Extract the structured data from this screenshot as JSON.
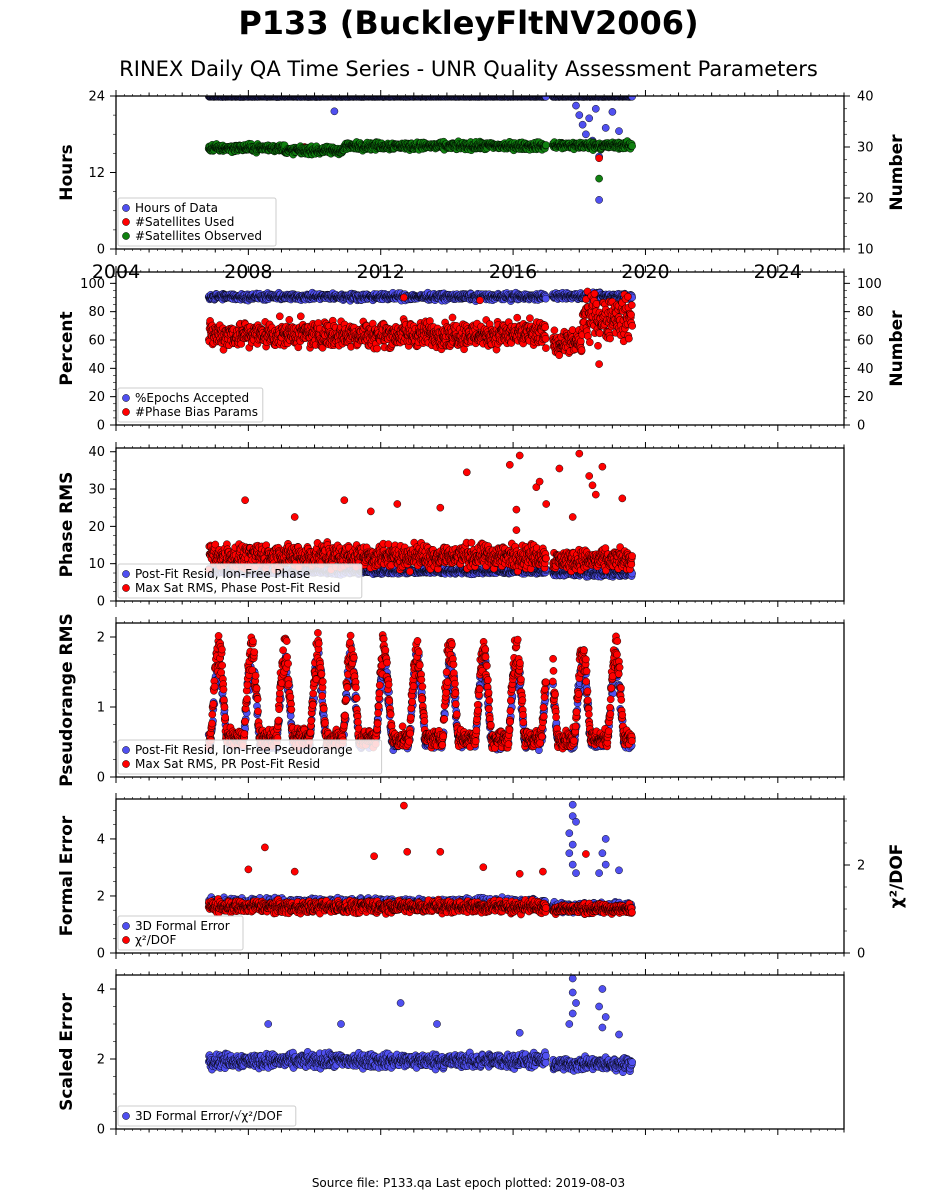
{
  "figure": {
    "title": "P133 (BuckleyFltNV2006)",
    "subtitle": "RINEX Daily QA Time Series - UNR Quality Assessment Parameters",
    "footer": "Source file: P133.qa Last epoch plotted: 2019-08-03",
    "colors": {
      "blue": "#5050f0",
      "red": "#ff0000",
      "green": "#108010",
      "edge": "#000000"
    }
  },
  "chart_data": [
    {
      "type": "scatter",
      "xlim": [
        2004,
        2026
      ],
      "xticks": [
        2004,
        2008,
        2012,
        2016,
        2020,
        2024
      ],
      "ylabel": "Hours",
      "ylim": [
        0,
        24
      ],
      "yticks": [
        "0",
        "12",
        "24"
      ],
      "ylabel_right": "Number",
      "ylim_right": [
        10,
        40
      ],
      "yticks_right": [
        "10",
        "20",
        "30",
        "40"
      ],
      "legend": "lower-left",
      "series": [
        {
          "name": "Hours of Data",
          "color": "blue",
          "axis": "left",
          "segments": [
            [
              2006.8,
              2017.0,
              23.9,
              0.05
            ],
            [
              2017.2,
              2019.6,
              23.9,
              0.05
            ]
          ],
          "scatter": [
            [
              2017.9,
              22.5
            ],
            [
              2018.0,
              21.0
            ],
            [
              2018.1,
              19.5
            ],
            [
              2018.2,
              18.0
            ],
            [
              2018.3,
              20.5
            ],
            [
              2018.4,
              17.0
            ],
            [
              2018.5,
              22.0
            ],
            [
              2018.8,
              19.0
            ],
            [
              2019.0,
              21.5
            ],
            [
              2019.2,
              18.5
            ],
            [
              2018.6,
              14.5
            ]
          ],
          "outliers": [
            [
              2010.6,
              21.6
            ],
            [
              2018.6,
              7.7
            ]
          ]
        },
        {
          "name": "#Satellites Used",
          "color": "red",
          "axis": "right",
          "outliers": [
            [
              2009.7,
              30.0
            ],
            [
              2018.6,
              27.8
            ]
          ]
        },
        {
          "name": "#Satellites Observed",
          "color": "green",
          "axis": "right",
          "segments": [
            [
              2006.8,
              2009.1,
              29.8,
              0.8
            ],
            [
              2009.1,
              2010.9,
              29.3,
              0.8
            ],
            [
              2010.9,
              2017.0,
              30.2,
              0.8
            ],
            [
              2017.2,
              2019.6,
              30.3,
              0.8
            ]
          ],
          "outliers": [
            [
              2018.6,
              23.8
            ]
          ]
        }
      ]
    },
    {
      "type": "scatter",
      "xlim": [
        2004,
        2026
      ],
      "ylabel": "Percent",
      "ylim": [
        0,
        108
      ],
      "yticks": [
        "0",
        "20",
        "40",
        "60",
        "80",
        "100"
      ],
      "ylabel_right": "Number",
      "ylim_right": [
        0,
        108
      ],
      "yticks_right": [
        "0",
        "20",
        "40",
        "60",
        "80",
        "100"
      ],
      "legend": "lower-left",
      "series": [
        {
          "name": "%Epochs Accepted",
          "color": "blue",
          "axis": "left",
          "segments": [
            [
              2006.8,
              2017.0,
              90.5,
              2.5
            ],
            [
              2017.2,
              2019.6,
              91.0,
              2.5
            ]
          ]
        },
        {
          "name": "#Phase Bias Params",
          "color": "red",
          "axis": "right",
          "segments": [
            [
              2006.8,
              2017.0,
              64,
              10
            ],
            [
              2017.2,
              2018.1,
              58,
              9
            ],
            [
              2018.1,
              2019.6,
              76,
              17
            ]
          ],
          "outliers": [
            [
              2018.6,
              43
            ],
            [
              2012.7,
              90
            ],
            [
              2015.0,
              88
            ]
          ]
        }
      ]
    },
    {
      "type": "scatter",
      "xlim": [
        2004,
        2026
      ],
      "ylabel": "Phase RMS",
      "ylim": [
        0,
        41
      ],
      "yticks": [
        "0",
        "10",
        "20",
        "30",
        "40"
      ],
      "legend": "lower-left",
      "series": [
        {
          "name": "Post-Fit Resid, Ion-Free Phase",
          "color": "blue",
          "axis": "left",
          "segments": [
            [
              2006.8,
              2017.0,
              8.0,
              0.8
            ],
            [
              2017.2,
              2019.6,
              7.5,
              1.0
            ]
          ]
        },
        {
          "name": "Max Sat RMS, Phase Post-Fit Resid",
          "color": "red",
          "axis": "left",
          "segments": [
            [
              2006.8,
              2017.0,
              12.0,
              3.5
            ],
            [
              2017.2,
              2019.6,
              11.0,
              3.0
            ]
          ],
          "scatter": [
            [
              2007.9,
              27
            ],
            [
              2010.9,
              27
            ],
            [
              2014.6,
              34.5
            ],
            [
              2015.9,
              36.5
            ],
            [
              2016.1,
              24.5
            ],
            [
              2016.1,
              19
            ],
            [
              2016.2,
              39
            ],
            [
              2016.7,
              30.5
            ],
            [
              2016.8,
              32
            ],
            [
              2017.0,
              26
            ],
            [
              2017.4,
              35.5
            ],
            [
              2017.8,
              22.5
            ],
            [
              2018.0,
              39.5
            ],
            [
              2018.3,
              33.5
            ],
            [
              2018.4,
              31
            ],
            [
              2018.5,
              28.5
            ],
            [
              2018.7,
              36
            ],
            [
              2019.3,
              27.5
            ],
            [
              2012.5,
              26
            ],
            [
              2013.8,
              25
            ],
            [
              2011.7,
              24
            ],
            [
              2009.4,
              22.5
            ]
          ]
        }
      ]
    },
    {
      "type": "scatter",
      "xlim": [
        2004,
        2026
      ],
      "ylabel": "Pseudorange RMS",
      "ylim": [
        0,
        2.2
      ],
      "yticks": [
        "0",
        "1",
        "2"
      ],
      "legend": "lower-left",
      "series": [
        {
          "name": "Post-Fit Resid, Ion-Free Pseudorange",
          "color": "blue",
          "axis": "left",
          "seasonal": {
            "base": 0.5,
            "amp": 1.2,
            "noise": 0.12
          }
        },
        {
          "name": "Max Sat RMS, PR Post-Fit Resid",
          "color": "red",
          "axis": "left",
          "seasonal": {
            "base": 0.55,
            "amp": 1.35,
            "noise": 0.15
          }
        }
      ]
    },
    {
      "type": "scatter",
      "xlim": [
        2004,
        2026
      ],
      "ylabel": "Formal Error",
      "ylim": [
        0,
        5.4
      ],
      "yticks": [
        "0",
        "2",
        "4"
      ],
      "ylabel_right": "χ²/DOF",
      "ylim_right": [
        0,
        3.5
      ],
      "yticks_right": [
        "0",
        "2"
      ],
      "legend": "lower-left",
      "series": [
        {
          "name": "3D Formal Error",
          "color": "blue",
          "axis": "left",
          "segments": [
            [
              2006.8,
              2017.0,
              1.75,
              0.18
            ],
            [
              2017.2,
              2019.6,
              1.6,
              0.2
            ]
          ],
          "scatter": [
            [
              2017.8,
              5.2
            ],
            [
              2017.8,
              4.8
            ],
            [
              2017.9,
              4.6
            ],
            [
              2017.7,
              4.2
            ],
            [
              2017.8,
              3.8
            ],
            [
              2017.7,
              3.5
            ],
            [
              2017.8,
              3.1
            ],
            [
              2017.9,
              2.8
            ],
            [
              2018.7,
              3.5
            ],
            [
              2018.8,
              3.1
            ],
            [
              2018.8,
              4.0
            ],
            [
              2018.6,
              2.8
            ],
            [
              2019.2,
              2.9
            ]
          ]
        },
        {
          "name": "χ²/DOF",
          "color": "red",
          "axis": "right",
          "segments": [
            [
              2006.8,
              2017.0,
              1.05,
              0.15
            ],
            [
              2017.2,
              2019.6,
              1.0,
              0.12
            ]
          ],
          "scatter": [
            [
              2008.5,
              2.4
            ],
            [
              2012.7,
              3.35
            ],
            [
              2012.8,
              2.3
            ],
            [
              2013.8,
              2.3
            ],
            [
              2011.8,
              2.2
            ],
            [
              2008.0,
              1.9
            ],
            [
              2009.4,
              1.85
            ],
            [
              2015.1,
              1.95
            ],
            [
              2016.2,
              1.8
            ],
            [
              2016.9,
              1.85
            ],
            [
              2018.2,
              2.25
            ]
          ]
        }
      ]
    },
    {
      "type": "scatter",
      "xlim": [
        2004,
        2026
      ],
      "ylabel": "Scaled Error",
      "ylim": [
        0,
        4.4
      ],
      "yticks": [
        "0",
        "2",
        "4"
      ],
      "legend": "lower-left",
      "series": [
        {
          "name": "3D Formal Error/√χ²/DOF",
          "color": "blue",
          "axis": "left",
          "segments": [
            [
              2006.8,
              2017.0,
              1.95,
              0.22
            ],
            [
              2017.2,
              2019.6,
              1.85,
              0.2
            ]
          ],
          "scatter": [
            [
              2017.8,
              4.3
            ],
            [
              2017.8,
              3.9
            ],
            [
              2017.9,
              3.6
            ],
            [
              2017.8,
              3.3
            ],
            [
              2017.7,
              3.0
            ],
            [
              2018.7,
              4.0
            ],
            [
              2018.6,
              3.5
            ],
            [
              2018.8,
              3.2
            ],
            [
              2018.7,
              2.9
            ],
            [
              2012.6,
              3.6
            ],
            [
              2013.7,
              3.0
            ],
            [
              2010.8,
              3.0
            ],
            [
              2008.6,
              3.0
            ],
            [
              2016.2,
              2.75
            ],
            [
              2019.2,
              2.7
            ]
          ]
        }
      ]
    }
  ]
}
